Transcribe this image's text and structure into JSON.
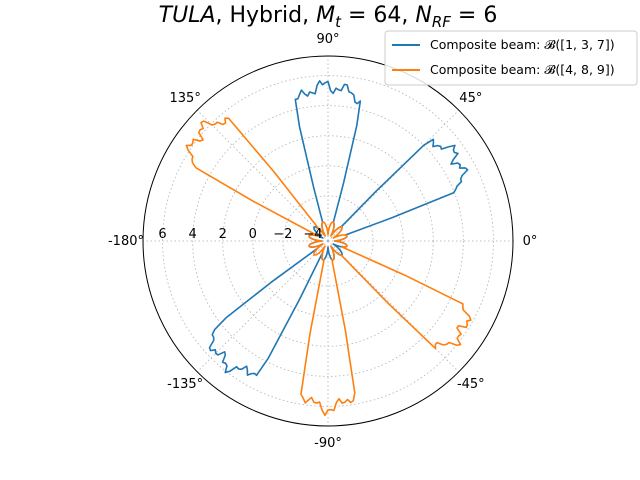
{
  "chart_data": {
    "type": "polar-line",
    "title": {
      "italic_lead": "TULA",
      "text": ", Hybrid, ",
      "mt_symbol": "M",
      "mt_sub": "t",
      "mt_value": " = 64, ",
      "nrf_symbol": "N",
      "nrf_sub": "RF",
      "nrf_value": " = 6"
    },
    "angle_tick_labels": [
      {
        "deg": 0,
        "label": "0°"
      },
      {
        "deg": 45,
        "label": "45°"
      },
      {
        "deg": 90,
        "label": "90°"
      },
      {
        "deg": 135,
        "label": "135°"
      },
      {
        "deg": 180,
        "label": "-180°"
      },
      {
        "deg": 225,
        "label": "-135°"
      },
      {
        "deg": 270,
        "label": "-90°"
      },
      {
        "deg": 315,
        "label": "-45°"
      }
    ],
    "radial_axis": {
      "rmin": -5,
      "rmax": 7.3,
      "ticks": [
        -4,
        -2,
        0,
        2,
        4,
        6
      ],
      "tick_labels": [
        "−4",
        "−2",
        "0",
        "2",
        "4",
        "6"
      ],
      "label_angle_deg": 180
    },
    "grid": true,
    "legend": {
      "placement": "top-right"
    },
    "series": [
      {
        "name": "Composite beam: 𝓑([1, 3, 7])",
        "color": "#1f77b4",
        "lobes": [
          {
            "center_deg": 90,
            "half_width_deg": 16,
            "peak": 5.3
          },
          {
            "center_deg": 33,
            "half_width_deg": 14,
            "peak": 5.2
          },
          {
            "center_deg": 230,
            "half_width_deg": 15,
            "peak": 5.6
          }
        ],
        "floor": -4.6
      },
      {
        "name": "Composite beam: 𝓑([4, 8, 9])",
        "color": "#ff7f0e",
        "lobes": [
          {
            "center_deg": 140,
            "half_width_deg": 13,
            "peak": 6.2
          },
          {
            "center_deg": 270,
            "half_width_deg": 12,
            "peak": 6.1
          },
          {
            "center_deg": 325,
            "half_width_deg": 12,
            "peak": 5.8
          }
        ],
        "floor": -4.6
      }
    ]
  }
}
